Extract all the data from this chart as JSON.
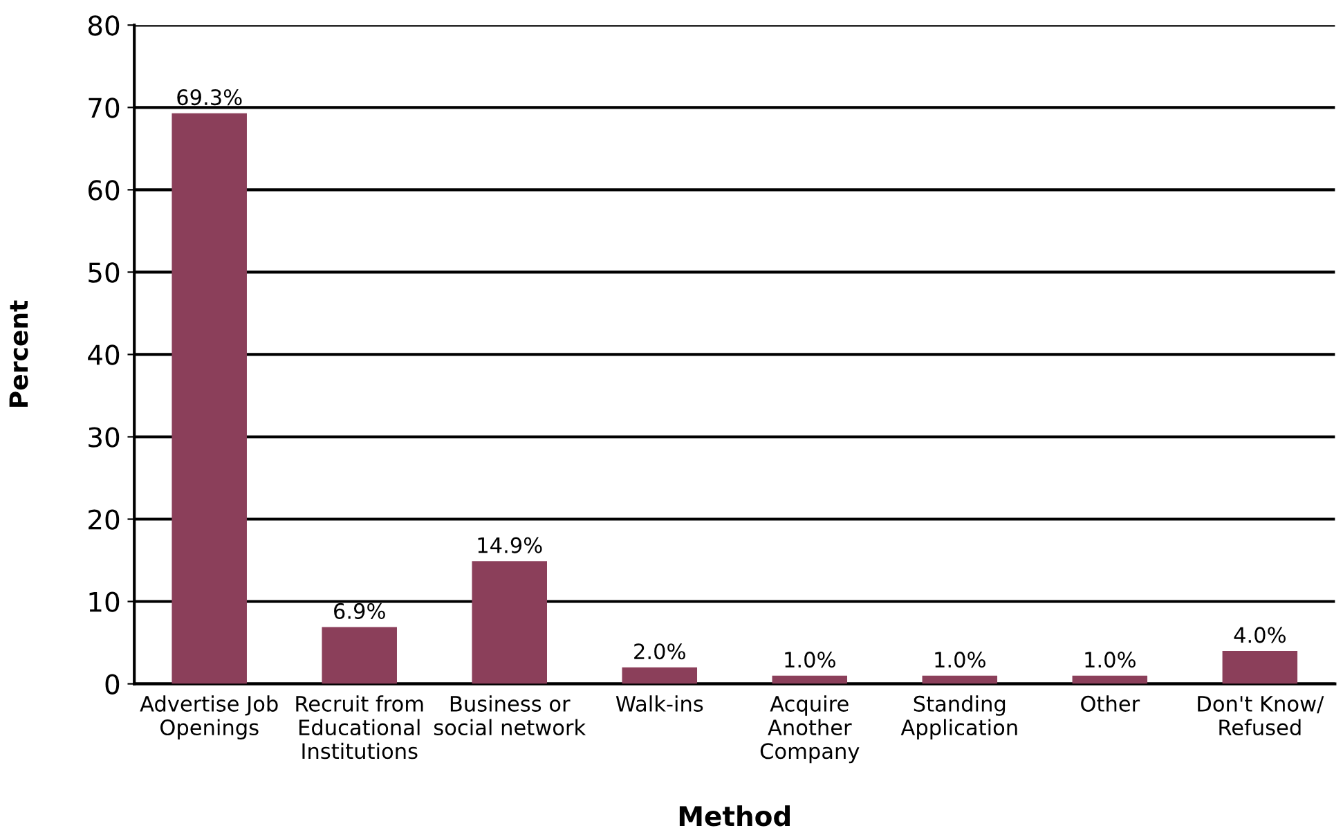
{
  "chart_data": {
    "type": "bar",
    "xlabel": "Method",
    "ylabel": "Percent",
    "categories": [
      "Advertise Job\nOpenings",
      "Recruit from\nEducational\nInstitutions",
      "Business or\nsocial network",
      "Walk-ins",
      "Acquire\nAnother\nCompany",
      "Standing\nApplication",
      "Other",
      "Don't Know/\nRefused"
    ],
    "values": [
      69.3,
      6.9,
      14.9,
      2.0,
      1.0,
      1.0,
      1.0,
      4.0
    ],
    "value_labels": [
      "69.3%",
      "6.9%",
      "14.9%",
      "2.0%",
      "1.0%",
      "1.0%",
      "1.0%",
      "4.0%"
    ],
    "color": "#8b3f5a",
    "ylim": [
      0,
      80
    ],
    "yticks": [
      0,
      10,
      20,
      30,
      40,
      50,
      60,
      70,
      80
    ],
    "grid": "y",
    "legend": false
  }
}
